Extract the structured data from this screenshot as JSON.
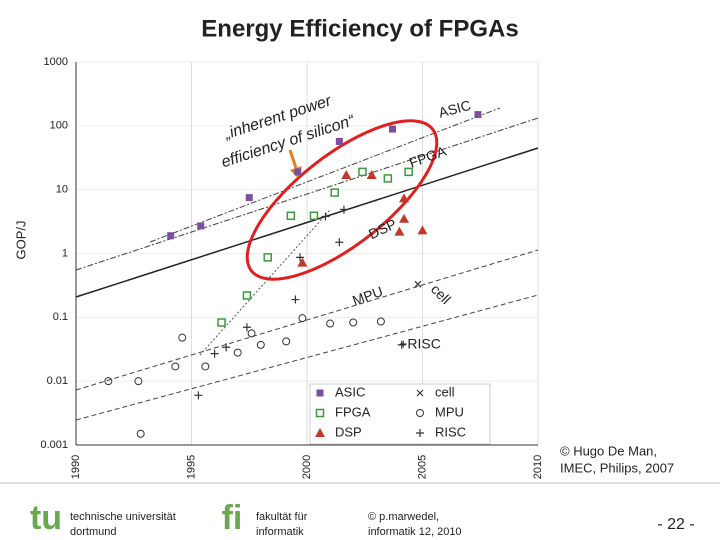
{
  "chart_data": {
    "type": "scatter",
    "title": "Energy Efficiency of FPGAs",
    "y_label": "GOP/J",
    "log_y": true,
    "grid": true,
    "legend_corner": "lower right",
    "xlim": [
      1990,
      2010
    ],
    "xticks": [
      1990,
      1995,
      2000,
      2005,
      2010
    ],
    "ylim": [
      0.001,
      1000
    ],
    "yticks": [
      0.001,
      0.01,
      0.1,
      1,
      10,
      100,
      1000
    ],
    "series": [
      {
        "name": "ASIC",
        "marker": "square",
        "color": "#7b4f9e",
        "x": [
          1994.1,
          1995.4,
          1997.5,
          1999.6,
          2001.4,
          2003.7,
          2007.4
        ],
        "values": [
          1.9,
          2.7,
          7.5,
          19,
          57,
          89,
          150
        ]
      },
      {
        "name": "cell",
        "marker": "x",
        "color": "#333333",
        "x": [
          2004.8
        ],
        "values": [
          0.33
        ]
      },
      {
        "name": "FPGA",
        "marker": "open-square",
        "color": "#3a9a3a",
        "x": [
          1996.3,
          1997.4,
          1998.3,
          1999.3,
          2000.3,
          2001.2,
          2002.4,
          2003.5,
          2004.4
        ],
        "values": [
          0.083,
          0.22,
          0.87,
          3.9,
          3.9,
          9,
          19,
          15,
          19
        ]
      },
      {
        "name": "MPU",
        "marker": "circle",
        "color": "#333333",
        "x": [
          1991.4,
          1992.7,
          1992.8,
          1994.3,
          1994.6,
          1995.6,
          1997.0,
          1997.6,
          1998.0,
          1999.1,
          1999.8,
          2001.0,
          2002.0,
          2003.2
        ],
        "values": [
          0.01,
          0.01,
          0.0015,
          0.017,
          0.048,
          0.017,
          0.028,
          0.056,
          0.037,
          0.042,
          0.097,
          0.08,
          0.083,
          0.086
        ]
      },
      {
        "name": "DSP",
        "marker": "triangle",
        "color": "#c0392b",
        "x": [
          1999.8,
          2001.7,
          2002.8,
          2004.2,
          2004.2,
          2004.0,
          2005.0
        ],
        "values": [
          0.72,
          17,
          17,
          7.3,
          3.5,
          2.2,
          2.3
        ]
      },
      {
        "name": "RISC",
        "marker": "plus",
        "color": "#333333",
        "x": [
          1995.3,
          1996.0,
          1996.5,
          1997.4,
          1999.5,
          1999.7,
          2000.8,
          2001.4,
          2001.6,
          2004.1
        ],
        "values": [
          0.006,
          0.027,
          0.034,
          0.07,
          0.19,
          0.87,
          3.8,
          1.5,
          4.9,
          0.037
        ]
      }
    ],
    "annotations": [
      "ASIC",
      "FPGA",
      "DSP",
      "MPU",
      "cell",
      "+RISC",
      "„inherent power",
      "efficiency of silicon“"
    ],
    "credit": [
      "© Hugo De Man,",
      "IMEC, Philips, 2007"
    ]
  },
  "footer": {
    "logo1": "tu",
    "university": [
      "technische universität",
      "dortmund"
    ],
    "logo2": "fi",
    "faculty": [
      "fakultät für",
      "informatik"
    ],
    "author": [
      "© p.marwedel,",
      "informatik 12,  2010"
    ],
    "page": "- 22 -"
  }
}
